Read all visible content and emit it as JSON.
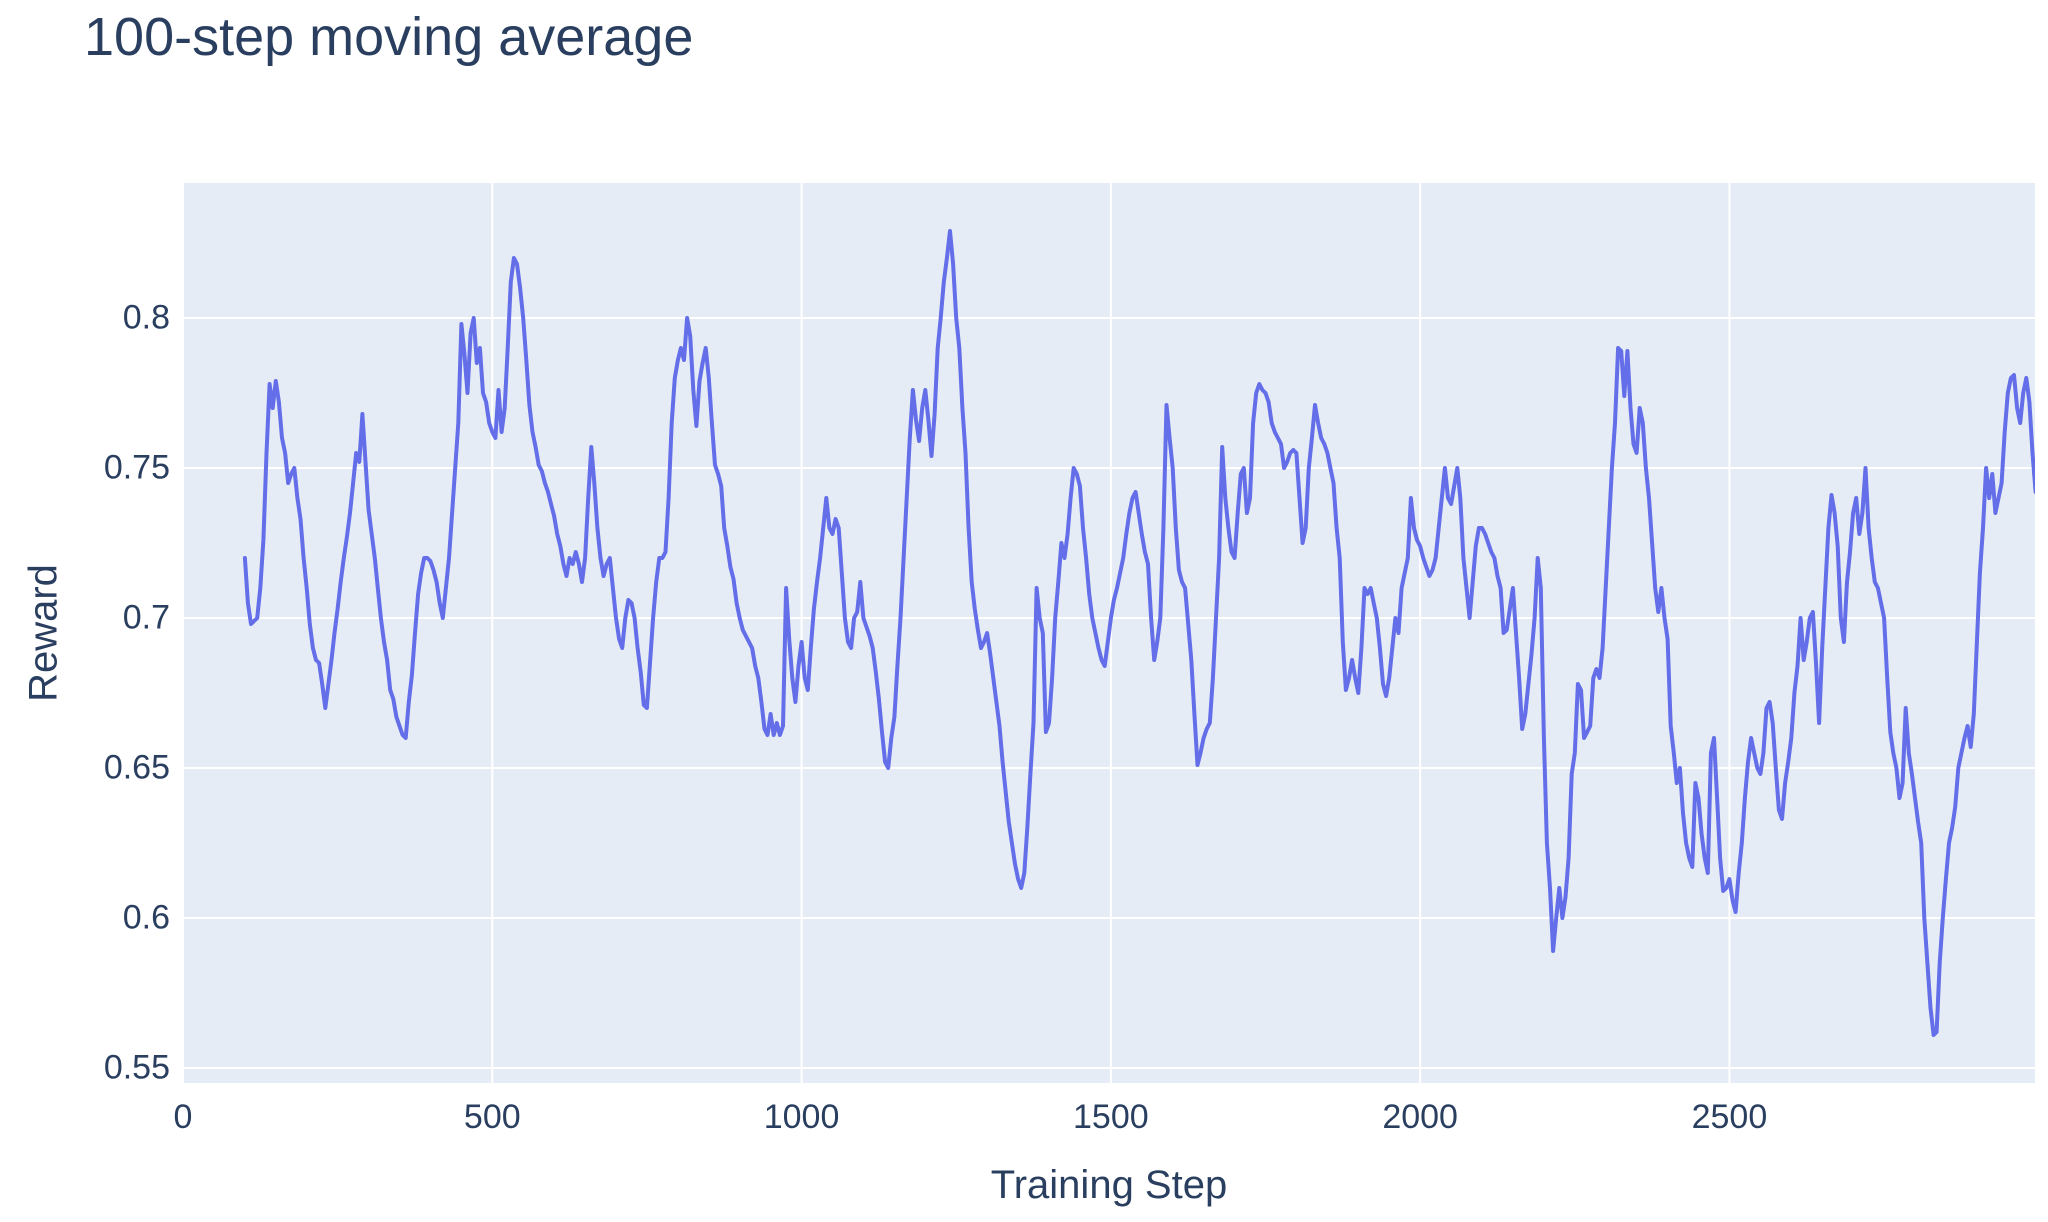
{
  "chart": {
    "title": "100-step moving average",
    "xlabel": "Training Step",
    "ylabel": "Reward",
    "colors": {
      "title_text": "#2a3f5f",
      "tick_text": "#2a3f5f",
      "plot_background": "#e5ecf6",
      "gridline": "#ffffff",
      "line": "#636ee8",
      "page_background": "#ffffff"
    }
  },
  "chart_data": {
    "type": "line",
    "title": "100-step moving average",
    "xlabel": "Training Step",
    "ylabel": "Reward",
    "legend": "none",
    "grid": true,
    "xlim": [
      0,
      2994
    ],
    "ylim": [
      0.545,
      0.845
    ],
    "x_tick_values": [
      0,
      500,
      1000,
      1500,
      2000,
      2500
    ],
    "x_tick_labels": [
      "0",
      "500",
      "1000",
      "1500",
      "2000",
      "2500"
    ],
    "y_tick_values": [
      0.8,
      0.75,
      0.7,
      0.65,
      0.6,
      0.55
    ],
    "y_tick_labels": [
      "0.8",
      "0.75",
      "0.7",
      "0.65",
      "0.6",
      "0.55"
    ],
    "series": [
      {
        "name": "100-step moving average reward",
        "x_start": 100,
        "x_step": 5,
        "values": [
          0.72,
          0.705,
          0.698,
          0.699,
          0.7,
          0.71,
          0.726,
          0.755,
          0.778,
          0.77,
          0.779,
          0.772,
          0.76,
          0.755,
          0.745,
          0.748,
          0.75,
          0.74,
          0.733,
          0.72,
          0.71,
          0.698,
          0.69,
          0.686,
          0.685,
          0.678,
          0.67,
          0.678,
          0.686,
          0.695,
          0.703,
          0.712,
          0.72,
          0.727,
          0.735,
          0.745,
          0.755,
          0.752,
          0.768,
          0.752,
          0.736,
          0.728,
          0.72,
          0.71,
          0.7,
          0.692,
          0.686,
          0.676,
          0.673,
          0.667,
          0.664,
          0.661,
          0.66,
          0.672,
          0.681,
          0.695,
          0.708,
          0.715,
          0.72,
          0.72,
          0.719,
          0.716,
          0.712,
          0.705,
          0.7,
          0.71,
          0.72,
          0.735,
          0.75,
          0.765,
          0.798,
          0.788,
          0.775,
          0.795,
          0.8,
          0.785,
          0.79,
          0.775,
          0.772,
          0.765,
          0.762,
          0.76,
          0.776,
          0.762,
          0.77,
          0.79,
          0.812,
          0.82,
          0.818,
          0.81,
          0.8,
          0.786,
          0.771,
          0.762,
          0.757,
          0.751,
          0.749,
          0.745,
          0.742,
          0.738,
          0.734,
          0.728,
          0.724,
          0.718,
          0.714,
          0.72,
          0.718,
          0.722,
          0.718,
          0.712,
          0.72,
          0.74,
          0.757,
          0.745,
          0.73,
          0.72,
          0.714,
          0.718,
          0.72,
          0.71,
          0.7,
          0.693,
          0.69,
          0.7,
          0.706,
          0.705,
          0.7,
          0.69,
          0.682,
          0.671,
          0.67,
          0.685,
          0.7,
          0.712,
          0.72,
          0.72,
          0.722,
          0.74,
          0.765,
          0.78,
          0.786,
          0.79,
          0.786,
          0.8,
          0.794,
          0.776,
          0.764,
          0.779,
          0.785,
          0.79,
          0.78,
          0.765,
          0.751,
          0.748,
          0.744,
          0.73,
          0.724,
          0.717,
          0.713,
          0.705,
          0.7,
          0.696,
          0.694,
          0.692,
          0.69,
          0.684,
          0.68,
          0.672,
          0.663,
          0.661,
          0.668,
          0.661,
          0.665,
          0.661,
          0.664,
          0.71,
          0.693,
          0.68,
          0.672,
          0.684,
          0.692,
          0.68,
          0.676,
          0.69,
          0.703,
          0.712,
          0.72,
          0.73,
          0.74,
          0.73,
          0.728,
          0.733,
          0.73,
          0.715,
          0.7,
          0.692,
          0.69,
          0.7,
          0.702,
          0.712,
          0.7,
          0.697,
          0.694,
          0.69,
          0.682,
          0.673,
          0.662,
          0.652,
          0.65,
          0.66,
          0.667,
          0.684,
          0.7,
          0.72,
          0.74,
          0.76,
          0.776,
          0.766,
          0.759,
          0.77,
          0.776,
          0.766,
          0.754,
          0.768,
          0.79,
          0.8,
          0.812,
          0.82,
          0.829,
          0.818,
          0.8,
          0.79,
          0.77,
          0.755,
          0.73,
          0.712,
          0.703,
          0.696,
          0.69,
          0.692,
          0.695,
          0.688,
          0.68,
          0.672,
          0.664,
          0.652,
          0.642,
          0.632,
          0.625,
          0.618,
          0.613,
          0.61,
          0.615,
          0.63,
          0.648,
          0.665,
          0.71,
          0.7,
          0.695,
          0.662,
          0.665,
          0.68,
          0.7,
          0.712,
          0.725,
          0.72,
          0.728,
          0.74,
          0.75,
          0.748,
          0.744,
          0.73,
          0.72,
          0.708,
          0.7,
          0.695,
          0.69,
          0.686,
          0.684,
          0.692,
          0.7,
          0.706,
          0.71,
          0.715,
          0.72,
          0.728,
          0.735,
          0.74,
          0.742,
          0.735,
          0.728,
          0.722,
          0.718,
          0.7,
          0.686,
          0.692,
          0.7,
          0.73,
          0.771,
          0.76,
          0.75,
          0.73,
          0.716,
          0.712,
          0.71,
          0.698,
          0.686,
          0.668,
          0.651,
          0.655,
          0.66,
          0.663,
          0.665,
          0.68,
          0.7,
          0.72,
          0.757,
          0.74,
          0.73,
          0.722,
          0.72,
          0.735,
          0.748,
          0.75,
          0.735,
          0.74,
          0.765,
          0.775,
          0.778,
          0.776,
          0.775,
          0.772,
          0.765,
          0.762,
          0.76,
          0.758,
          0.75,
          0.752,
          0.755,
          0.756,
          0.755,
          0.74,
          0.725,
          0.73,
          0.75,
          0.76,
          0.771,
          0.765,
          0.76,
          0.758,
          0.755,
          0.75,
          0.745,
          0.73,
          0.72,
          0.692,
          0.676,
          0.68,
          0.686,
          0.68,
          0.675,
          0.69,
          0.71,
          0.708,
          0.71,
          0.705,
          0.7,
          0.69,
          0.678,
          0.674,
          0.68,
          0.69,
          0.7,
          0.695,
          0.71,
          0.715,
          0.72,
          0.74,
          0.73,
          0.726,
          0.724,
          0.72,
          0.717,
          0.714,
          0.716,
          0.72,
          0.73,
          0.74,
          0.75,
          0.74,
          0.738,
          0.744,
          0.75,
          0.74,
          0.72,
          0.71,
          0.7,
          0.712,
          0.724,
          0.73,
          0.73,
          0.728,
          0.725,
          0.722,
          0.72,
          0.714,
          0.71,
          0.695,
          0.696,
          0.703,
          0.71,
          0.695,
          0.68,
          0.663,
          0.668,
          0.678,
          0.688,
          0.7,
          0.72,
          0.71,
          0.66,
          0.625,
          0.61,
          0.589,
          0.6,
          0.61,
          0.6,
          0.607,
          0.62,
          0.648,
          0.655,
          0.678,
          0.676,
          0.66,
          0.662,
          0.664,
          0.68,
          0.683,
          0.68,
          0.69,
          0.71,
          0.73,
          0.75,
          0.765,
          0.79,
          0.789,
          0.774,
          0.789,
          0.77,
          0.758,
          0.755,
          0.77,
          0.765,
          0.75,
          0.74,
          0.725,
          0.71,
          0.702,
          0.71,
          0.7,
          0.693,
          0.664,
          0.655,
          0.645,
          0.65,
          0.635,
          0.625,
          0.62,
          0.617,
          0.645,
          0.64,
          0.628,
          0.62,
          0.615,
          0.655,
          0.66,
          0.64,
          0.62,
          0.609,
          0.61,
          0.613,
          0.606,
          0.602,
          0.615,
          0.625,
          0.64,
          0.652,
          0.66,
          0.655,
          0.65,
          0.648,
          0.655,
          0.67,
          0.672,
          0.665,
          0.65,
          0.636,
          0.633,
          0.645,
          0.652,
          0.66,
          0.675,
          0.684,
          0.7,
          0.686,
          0.692,
          0.7,
          0.702,
          0.685,
          0.665,
          0.69,
          0.71,
          0.73,
          0.741,
          0.735,
          0.724,
          0.7,
          0.692,
          0.712,
          0.722,
          0.735,
          0.74,
          0.728,
          0.735,
          0.75,
          0.73,
          0.72,
          0.712,
          0.71,
          0.705,
          0.7,
          0.68,
          0.662,
          0.655,
          0.65,
          0.64,
          0.645,
          0.67,
          0.655,
          0.648,
          0.64,
          0.632,
          0.625,
          0.6,
          0.585,
          0.57,
          0.561,
          0.562,
          0.585,
          0.6,
          0.613,
          0.625,
          0.63,
          0.637,
          0.65,
          0.655,
          0.66,
          0.664,
          0.657,
          0.668,
          0.692,
          0.715,
          0.73,
          0.75,
          0.74,
          0.748,
          0.735,
          0.74,
          0.745,
          0.762,
          0.775,
          0.78,
          0.781,
          0.77,
          0.765,
          0.775,
          0.78,
          0.772,
          0.755,
          0.742
        ]
      }
    ]
  }
}
